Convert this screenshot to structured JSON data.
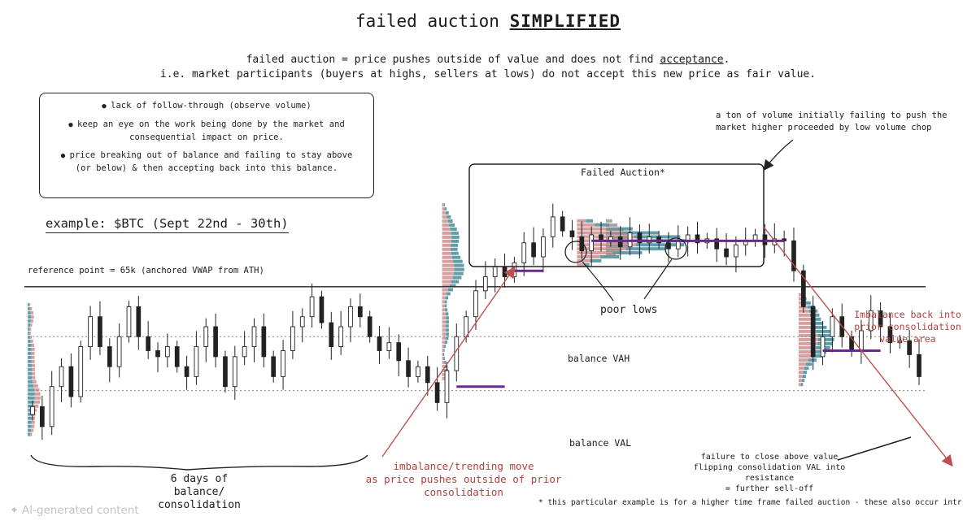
{
  "title": {
    "prefix": "failed auction",
    "emphasis": "SIMPLIFIED"
  },
  "subtitle": {
    "line1_prefix": "failed auction = price pushes outside of value and does not find",
    "line1_emph": "acceptance",
    "line1_suffix": ".",
    "line2": "i.e. market participants (buyers at highs, sellers at lows) do not accept this new price as fair value."
  },
  "notes": [
    "lack of follow-through (observe volume)",
    "keep an eye on the work being done by the market and consequential impact on price.",
    "price breaking out of balance and failing to stay above (or below) & then accepting back into this balance."
  ],
  "example_label": "example: $BTC (Sept 22nd - 30th)",
  "reference_label": "reference point = 65k (anchored VWAP from ATH)",
  "annotations": {
    "failed_auction": "Failed Auction*",
    "volume_note_1": "a ton of volume initially failing to push the",
    "volume_note_2": "market higher proceeded by low volume chop",
    "poor_lows": "poor lows",
    "balance_vah": "balance VAH",
    "balance_val": "balance VAL",
    "days_1": "6 days of",
    "days_2": "balance/",
    "days_3": "consolidation",
    "imbalance_1": "imbalance/trending move",
    "imbalance_2": "as price pushes outside of prior",
    "imbalance_3": "consolidation",
    "imbalance_back_1": "Imbalance back into",
    "imbalance_back_2": "prior consolidation",
    "imbalance_back_3": "value area",
    "failure_1": "failure to close above value",
    "failure_2": "flipping consolidation VAL into resistance",
    "failure_3": "= further sell-off",
    "footnote": "* this particular example is for a higher time frame failed auction - these also occur intraday"
  },
  "watermark": "AI-generated content",
  "colors": {
    "candle": "#222222",
    "profile_red": "#c98080",
    "profile_teal": "#2e7d8c",
    "profile_grey": "#8a8a8a",
    "poc": "#6a2a8a",
    "annotation_red": "#b24040"
  },
  "chart_data": {
    "type": "candlestick",
    "series": [
      {
        "values": [
          59,
          58,
          60,
          61,
          59.5,
          62,
          63.5,
          62,
          61,
          62.5,
          64,
          62.5,
          61.8,
          61.5,
          62,
          61,
          60.5,
          62,
          63,
          61.5,
          60,
          61.5,
          62,
          63,
          61.5,
          60.5,
          61.8,
          63,
          63.5,
          64.5,
          63.2,
          62,
          63,
          64,
          63.5,
          62.5,
          61.8,
          62.2,
          61.3,
          60.5,
          61,
          60.2,
          59.2,
          60.8,
          62.5,
          63.5,
          64.8,
          65.5,
          66,
          65.5,
          66.2,
          67.2,
          66.5,
          67.5,
          68.5,
          67.8,
          67.5,
          66.8,
          67.6,
          67.3,
          67.5,
          67,
          67.7,
          67.2,
          67.5,
          67.2,
          66.9,
          67.3,
          67.6,
          67.2,
          67.4,
          66.9,
          66.5,
          67.1,
          67.3,
          67.6,
          67.1,
          67.4,
          67.3,
          65.8,
          64,
          61.5,
          62.5,
          63.5,
          62.5,
          61.8,
          62.8,
          63.8,
          63,
          62.2,
          62.3,
          61.6,
          60.5
        ]
      }
    ],
    "levels": [
      {
        "value": 65
      },
      {
        "value": 62.5
      },
      {
        "value": 59.8
      }
    ]
  }
}
